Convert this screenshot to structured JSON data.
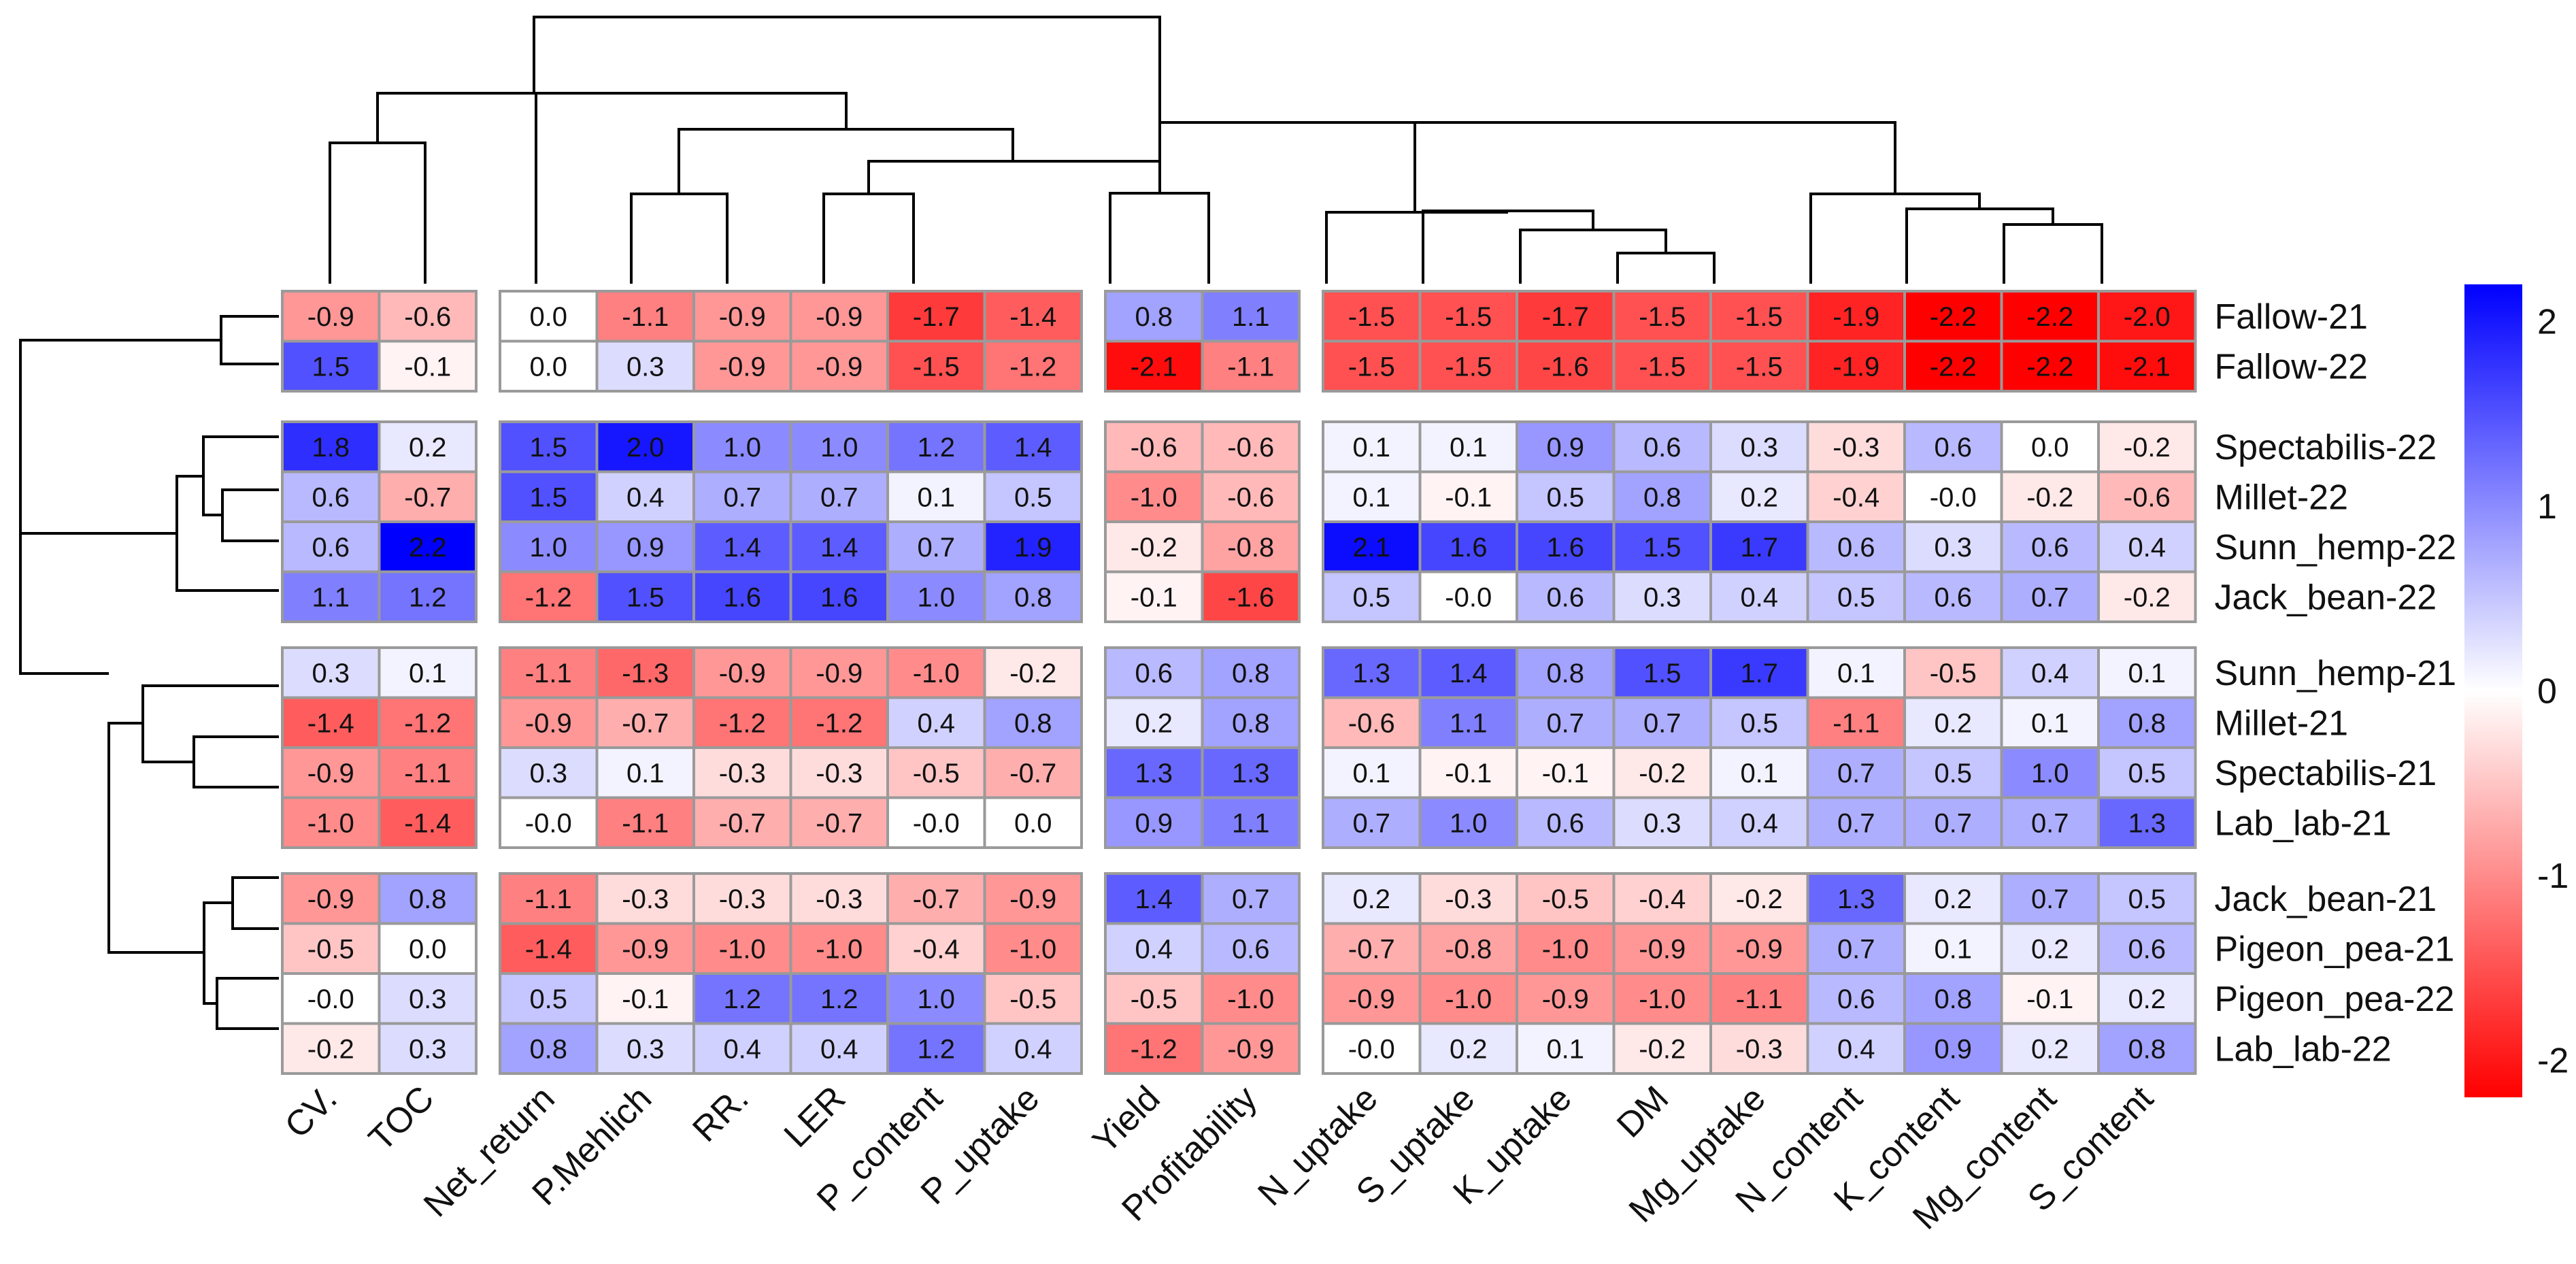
{
  "chart_data": {
    "type": "heatmap",
    "title": "",
    "columns": [
      "CV.",
      "TOC",
      "Net_return",
      "P.Mehlich",
      "RR.",
      "LER",
      "P_content",
      "P_uptake",
      "Yield",
      "Profitability",
      "N_uptake",
      "S_uptake",
      "K_uptake",
      "DM",
      "Mg_uptake",
      "N_content",
      "K_content",
      "Mg_content",
      "S_content"
    ],
    "rows": [
      "Fallow-21",
      "Fallow-22",
      "Spectabilis-22",
      "Millet-22",
      "Sunn_hemp-22",
      "Jack_bean-22",
      "Sunn_hemp-21",
      "Millet-21",
      "Spectabilis-21",
      "Lab_lab-21",
      "Jack_bean-21",
      "Pigeon_pea-21",
      "Pigeon_pea-22",
      "Lab_lab-22"
    ],
    "values": [
      [
        "-0.9",
        "-0.6",
        "0.0",
        "-1.1",
        "-0.9",
        "-0.9",
        "-1.7",
        "-1.4",
        "0.8",
        "1.1",
        "-1.5",
        "-1.5",
        "-1.7",
        "-1.5",
        "-1.5",
        "-1.9",
        "-2.2",
        "-2.2",
        "-2.0"
      ],
      [
        "1.5",
        "-0.1",
        "0.0",
        "0.3",
        "-0.9",
        "-0.9",
        "-1.5",
        "-1.2",
        "-2.1",
        "-1.1",
        "-1.5",
        "-1.5",
        "-1.6",
        "-1.5",
        "-1.5",
        "-1.9",
        "-2.2",
        "-2.2",
        "-2.1"
      ],
      [
        "1.8",
        "0.2",
        "1.5",
        "2.0",
        "1.0",
        "1.0",
        "1.2",
        "1.4",
        "-0.6",
        "-0.6",
        "0.1",
        "0.1",
        "0.9",
        "0.6",
        "0.3",
        "-0.3",
        "0.6",
        "0.0",
        "-0.2"
      ],
      [
        "0.6",
        "-0.7",
        "1.5",
        "0.4",
        "0.7",
        "0.7",
        "0.1",
        "0.5",
        "-1.0",
        "-0.6",
        "0.1",
        "-0.1",
        "0.5",
        "0.8",
        "0.2",
        "-0.4",
        "-0.0",
        "-0.2",
        "-0.6"
      ],
      [
        "0.6",
        "2.2",
        "1.0",
        "0.9",
        "1.4",
        "1.4",
        "0.7",
        "1.9",
        "-0.2",
        "-0.8",
        "2.1",
        "1.6",
        "1.6",
        "1.5",
        "1.7",
        "0.6",
        "0.3",
        "0.6",
        "0.4"
      ],
      [
        "1.1",
        "1.2",
        "-1.2",
        "1.5",
        "1.6",
        "1.6",
        "1.0",
        "0.8",
        "-0.1",
        "-1.6",
        "0.5",
        "-0.0",
        "0.6",
        "0.3",
        "0.4",
        "0.5",
        "0.6",
        "0.7",
        "-0.2"
      ],
      [
        "0.3",
        "0.1",
        "-1.1",
        "-1.3",
        "-0.9",
        "-0.9",
        "-1.0",
        "-0.2",
        "0.6",
        "0.8",
        "1.3",
        "1.4",
        "0.8",
        "1.5",
        "1.7",
        "0.1",
        "-0.5",
        "0.4",
        "0.1"
      ],
      [
        "-1.4",
        "-1.2",
        "-0.9",
        "-0.7",
        "-1.2",
        "-1.2",
        "0.4",
        "0.8",
        "0.2",
        "0.8",
        "-0.6",
        "1.1",
        "0.7",
        "0.7",
        "0.5",
        "-1.1",
        "0.2",
        "0.1",
        "0.8"
      ],
      [
        "-0.9",
        "-1.1",
        "0.3",
        "0.1",
        "-0.3",
        "-0.3",
        "-0.5",
        "-0.7",
        "1.3",
        "1.3",
        "0.1",
        "-0.1",
        "-0.1",
        "-0.2",
        "0.1",
        "0.7",
        "0.5",
        "1.0",
        "0.5"
      ],
      [
        "-1.0",
        "-1.4",
        "-0.0",
        "-1.1",
        "-0.7",
        "-0.7",
        "-0.0",
        "0.0",
        "0.9",
        "1.1",
        "0.7",
        "1.0",
        "0.6",
        "0.3",
        "0.4",
        "0.7",
        "0.7",
        "0.7",
        "1.3"
      ],
      [
        "-0.9",
        "0.8",
        "-1.1",
        "-0.3",
        "-0.3",
        "-0.3",
        "-0.7",
        "-0.9",
        "1.4",
        "0.7",
        "0.2",
        "-0.3",
        "-0.5",
        "-0.4",
        "-0.2",
        "1.3",
        "0.2",
        "0.7",
        "0.5"
      ],
      [
        "-0.5",
        "0.0",
        "-1.4",
        "-0.9",
        "-1.0",
        "-1.0",
        "-0.4",
        "-1.0",
        "0.4",
        "0.6",
        "-0.7",
        "-0.8",
        "-1.0",
        "-0.9",
        "-0.9",
        "0.7",
        "0.1",
        "0.2",
        "0.6"
      ],
      [
        "-0.0",
        "0.3",
        "0.5",
        "-0.1",
        "1.2",
        "1.2",
        "1.0",
        "-0.5",
        "-0.5",
        "-1.0",
        "-0.9",
        "-1.0",
        "-0.9",
        "-1.0",
        "-1.1",
        "0.6",
        "0.8",
        "-0.1",
        "0.2"
      ],
      [
        "-0.2",
        "0.3",
        "0.8",
        "0.3",
        "0.4",
        "0.4",
        "1.2",
        "0.4",
        "-1.2",
        "-0.9",
        "-0.0",
        "0.2",
        "0.1",
        "-0.2",
        "-0.3",
        "0.4",
        "0.9",
        "0.2",
        "0.8"
      ]
    ],
    "column_groups": [
      [
        0,
        1
      ],
      [
        2,
        3,
        4,
        5,
        6,
        7
      ],
      [
        8,
        9
      ],
      [
        10,
        11,
        12,
        13,
        14,
        15,
        16,
        17,
        18
      ]
    ],
    "row_groups": [
      [
        0,
        1
      ],
      [
        2,
        3,
        4,
        5
      ],
      [
        6,
        7,
        8,
        9
      ],
      [
        10,
        11,
        12,
        13
      ]
    ],
    "color_scale": {
      "min": -2.2,
      "max": 2.2,
      "low_color": "#ff0000",
      "mid_color": "#ffffff",
      "high_color": "#0000ff",
      "ticks": [
        "2",
        "1",
        "0",
        "-1",
        "-2"
      ]
    },
    "legend": {
      "position": "right"
    },
    "grid": false
  }
}
